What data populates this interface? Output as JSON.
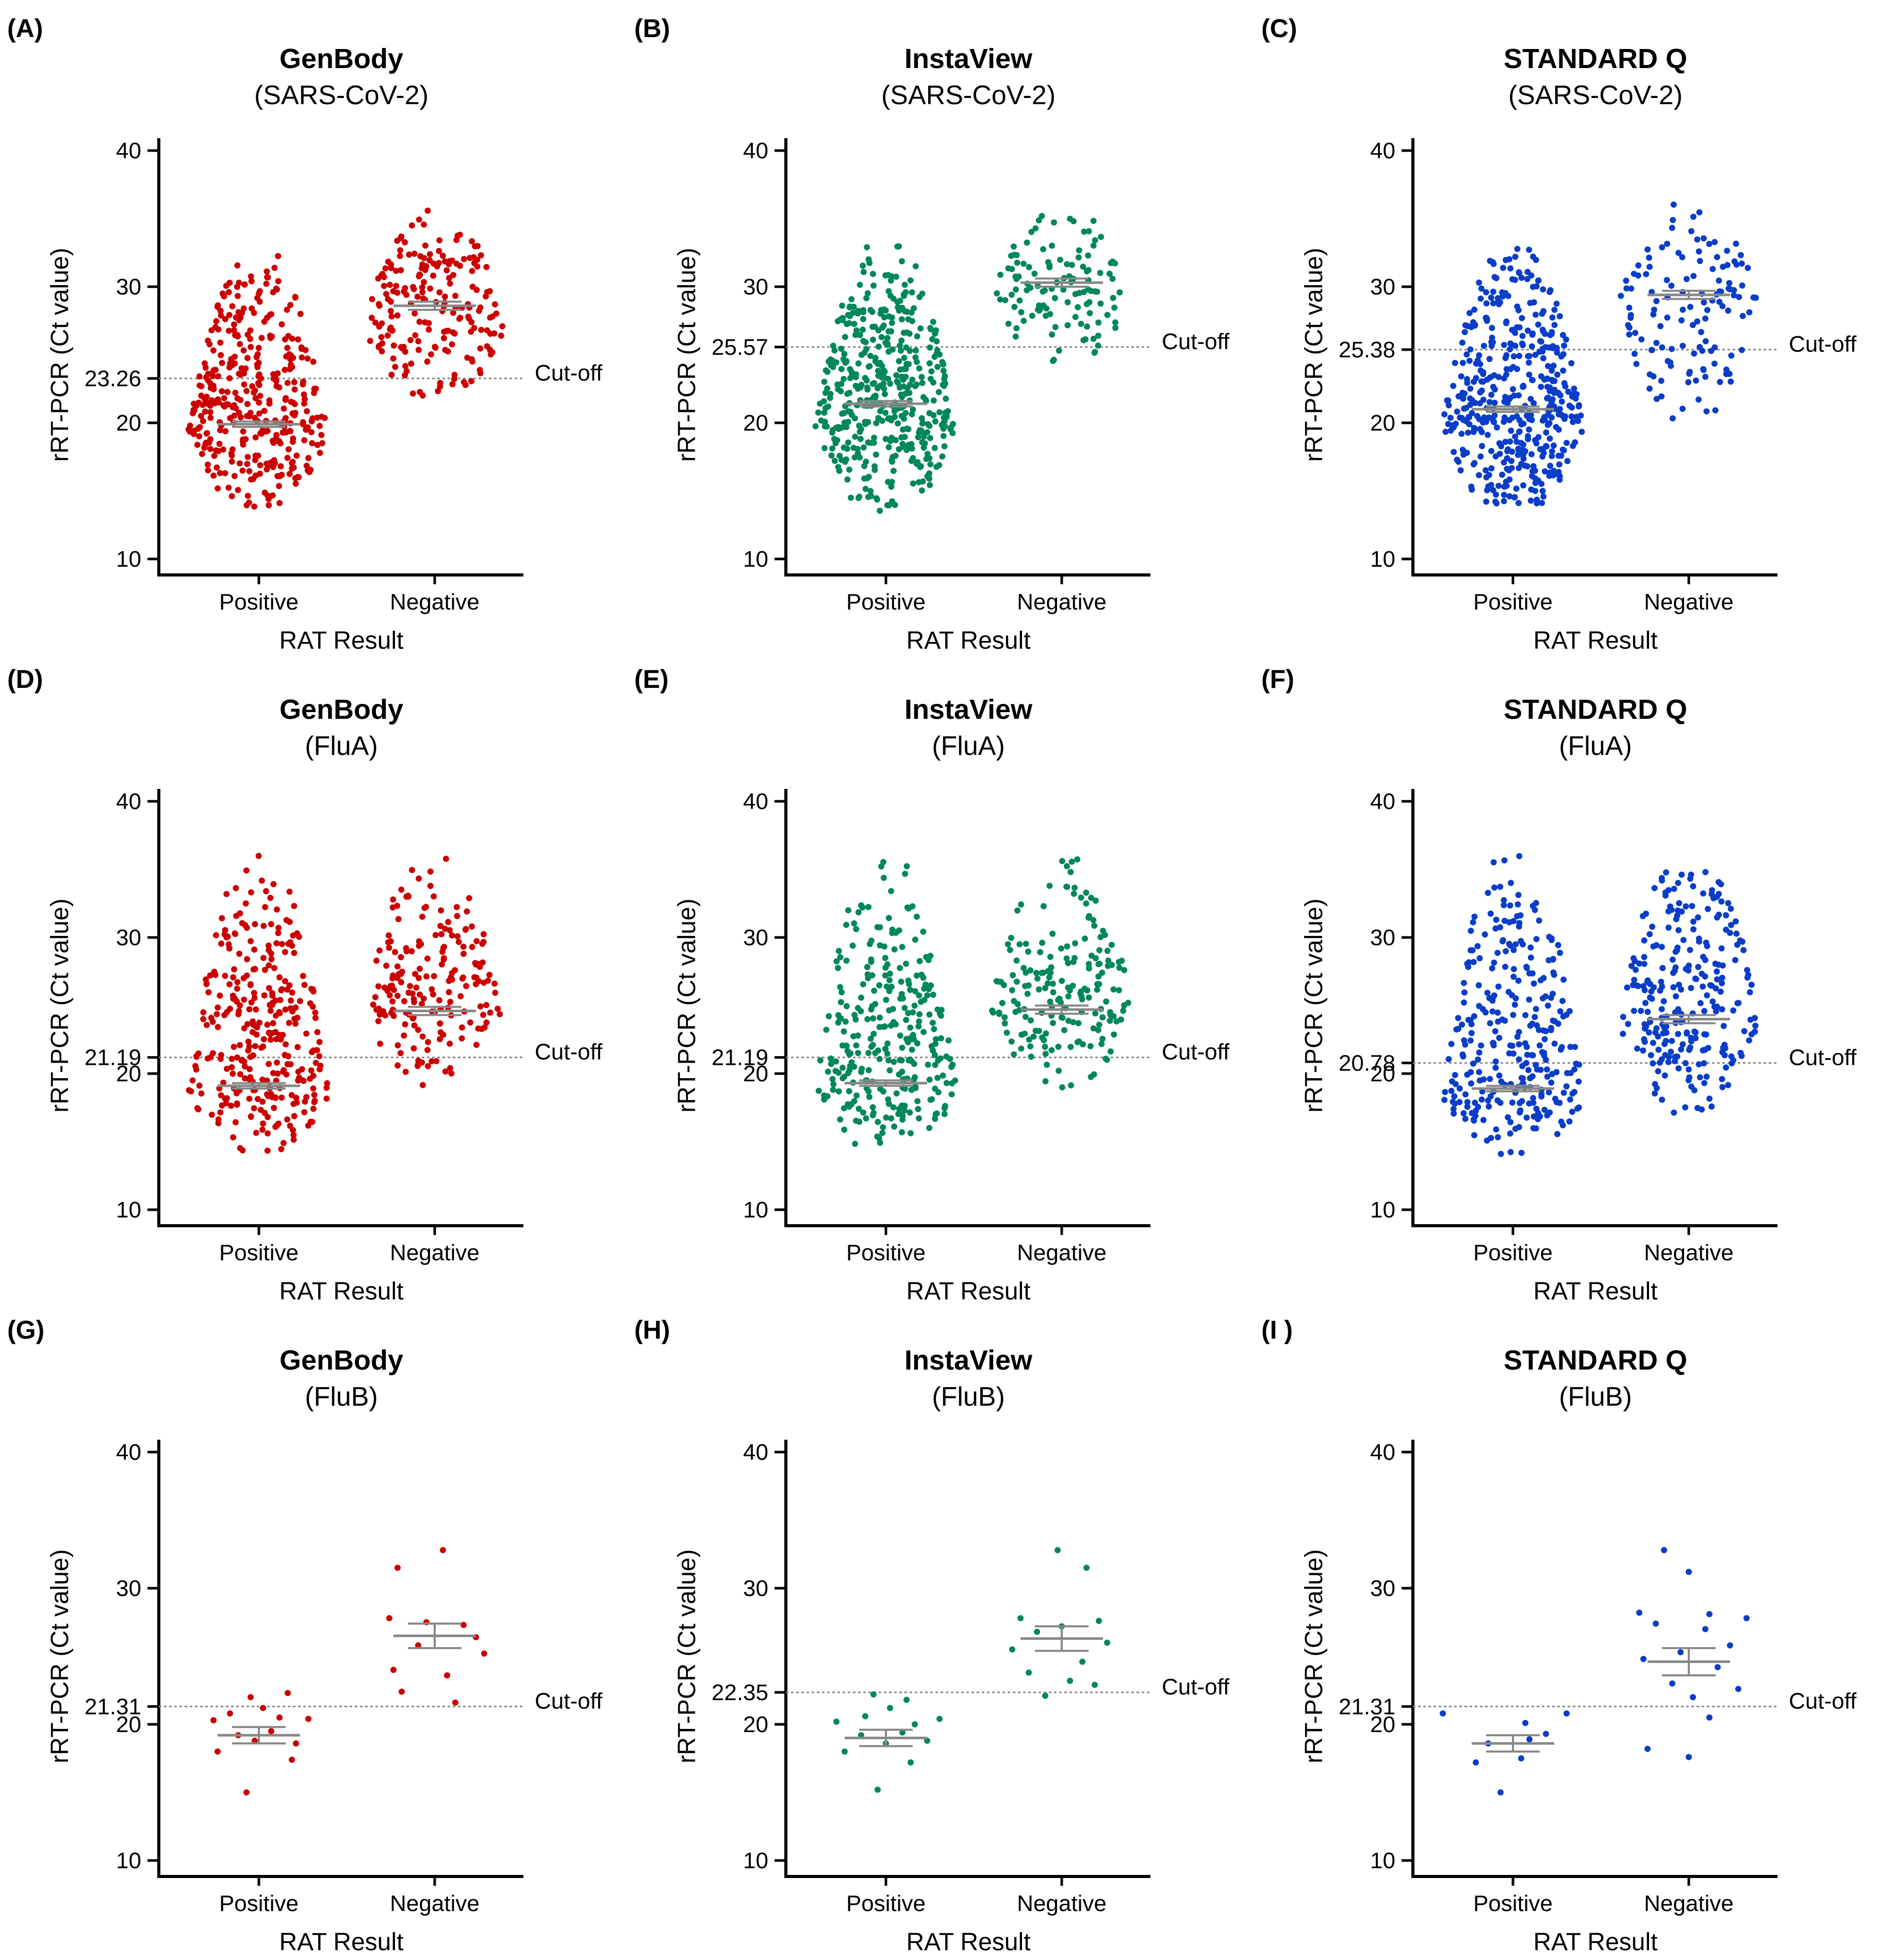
{
  "figure": {
    "colors": {
      "GenBody": "#cc0000",
      "InstaView": "#00875a",
      "STANDARD Q": "#0a3dc8"
    },
    "axis_color": "#000000",
    "cutoff_color": "#888888",
    "error_bar_color": "#888888"
  },
  "chart_data": [
    {
      "type": "scatter",
      "panel": "(A)",
      "title": "GenBody",
      "subtitle": "(SARS-CoV-2)",
      "xlabel": "RAT Result",
      "ylabel": "rRT-PCR (Ct value)",
      "ylim": [
        10,
        40
      ],
      "yticks": [
        10,
        20,
        30,
        40
      ],
      "categories": [
        "Positive",
        "Negative"
      ],
      "cutoff": 23.26,
      "cutoff_label": "23.26",
      "cutoff_text": "Cut-off",
      "color": "#cc0000",
      "groups": [
        {
          "name": "Positive",
          "n": 380,
          "min": 13.1,
          "max": 32.6,
          "mode": 19.5,
          "mean": 19.9,
          "sem": 0.2
        },
        {
          "name": "Negative",
          "n": 200,
          "min": 21.5,
          "max": 36.5,
          "mode": 27.0,
          "mean": 28.6,
          "sem": 0.3
        }
      ]
    },
    {
      "type": "scatter",
      "panel": "(B)",
      "title": "InstaView",
      "subtitle": "(SARS-CoV-2)",
      "xlabel": "RAT Result",
      "ylabel": "rRT-PCR (Ct value)",
      "ylim": [
        10,
        40
      ],
      "yticks": [
        10,
        20,
        30,
        40
      ],
      "categories": [
        "Positive",
        "Negative"
      ],
      "cutoff": 25.57,
      "cutoff_label": "25.57",
      "cutoff_text": "Cut-off",
      "color": "#00875a",
      "groups": [
        {
          "name": "Positive",
          "n": 460,
          "min": 13.0,
          "max": 33.6,
          "mode": 19.8,
          "mean": 21.4,
          "sem": 0.2
        },
        {
          "name": "Negative",
          "n": 120,
          "min": 24.0,
          "max": 36.5,
          "mode": 29.0,
          "mean": 30.3,
          "sem": 0.3
        }
      ]
    },
    {
      "type": "scatter",
      "panel": "(C)",
      "title": "STANDARD Q",
      "subtitle": "(SARS-CoV-2)",
      "xlabel": "RAT Result",
      "ylabel": "rRT-PCR (Ct value)",
      "ylim": [
        10,
        40
      ],
      "yticks": [
        10,
        20,
        30,
        40
      ],
      "categories": [
        "Positive",
        "Negative"
      ],
      "cutoff": 25.38,
      "cutoff_label": "25.38",
      "cutoff_text": "Cut-off",
      "color": "#0a3dc8",
      "groups": [
        {
          "name": "Positive",
          "n": 460,
          "min": 13.0,
          "max": 33.6,
          "mode": 19.8,
          "mean": 21.0,
          "sem": 0.2
        },
        {
          "name": "Negative",
          "n": 130,
          "min": 18.7,
          "max": 36.5,
          "mode": 29.0,
          "mean": 29.4,
          "sem": 0.3
        }
      ]
    },
    {
      "type": "scatter",
      "panel": "(D)",
      "title": "GenBody",
      "subtitle": "(FluA)",
      "xlabel": "RAT Result",
      "ylabel": "rRT-PCR (Ct value)",
      "ylim": [
        10,
        40
      ],
      "yticks": [
        10,
        20,
        30,
        40
      ],
      "categories": [
        "Positive",
        "Negative"
      ],
      "cutoff": 21.19,
      "cutoff_label": "21.19",
      "cutoff_text": "Cut-off",
      "color": "#cc0000",
      "groups": [
        {
          "name": "Positive",
          "n": 320,
          "min": 14.0,
          "max": 36.5,
          "mode": 18.5,
          "mean": 19.1,
          "sem": 0.2
        },
        {
          "name": "Negative",
          "n": 190,
          "min": 18.7,
          "max": 36.5,
          "mode": 24.8,
          "mean": 24.6,
          "sem": 0.3
        }
      ]
    },
    {
      "type": "scatter",
      "panel": "(E)",
      "title": "InstaView",
      "subtitle": "(FluA)",
      "xlabel": "RAT Result",
      "ylabel": "rRT-PCR (Ct value)",
      "ylim": [
        10,
        40
      ],
      "yticks": [
        10,
        20,
        30,
        40
      ],
      "categories": [
        "Positive",
        "Negative"
      ],
      "cutoff": 21.19,
      "cutoff_label": "21.19",
      "cutoff_text": "Cut-off",
      "color": "#00875a",
      "groups": [
        {
          "name": "Positive",
          "n": 300,
          "min": 14.0,
          "max": 36.5,
          "mode": 18.5,
          "mean": 19.3,
          "sem": 0.2
        },
        {
          "name": "Negative",
          "n": 190,
          "min": 18.7,
          "max": 36.5,
          "mode": 24.8,
          "mean": 24.7,
          "sem": 0.3
        }
      ]
    },
    {
      "type": "scatter",
      "panel": "(F)",
      "title": "STANDARD Q",
      "subtitle": "(FluA)",
      "xlabel": "RAT Result",
      "ylabel": "rRT-PCR (Ct value)",
      "ylim": [
        10,
        40
      ],
      "yticks": [
        10,
        20,
        30,
        40
      ],
      "categories": [
        "Positive",
        "Negative"
      ],
      "cutoff": 20.78,
      "cutoff_label": "20.78",
      "cutoff_text": "Cut-off",
      "color": "#0a3dc8",
      "groups": [
        {
          "name": "Positive",
          "n": 300,
          "min": 14.0,
          "max": 36.5,
          "mode": 18.0,
          "mean": 18.9,
          "sem": 0.2
        },
        {
          "name": "Negative",
          "n": 260,
          "min": 16.5,
          "max": 36.5,
          "mode": 24.0,
          "mean": 24.0,
          "sem": 0.3
        }
      ]
    },
    {
      "type": "scatter",
      "panel": "(G)",
      "title": "GenBody",
      "subtitle": "(FluB)",
      "xlabel": "RAT Result",
      "ylabel": "rRT-PCR (Ct value)",
      "ylim": [
        10,
        40
      ],
      "yticks": [
        10,
        20,
        30,
        40
      ],
      "categories": [
        "Positive",
        "Negative"
      ],
      "cutoff": 21.31,
      "cutoff_label": "21.31",
      "cutoff_text": "Cut-off",
      "color": "#cc0000",
      "groups": [
        {
          "name": "Positive",
          "n": 14,
          "mean": 19.2,
          "sem": 0.6,
          "points": [
            [
              -0.06,
              15.0
            ],
            [
              0.16,
              17.4
            ],
            [
              -0.2,
              18.0
            ],
            [
              -0.02,
              18.8
            ],
            [
              0.18,
              18.6
            ],
            [
              -0.1,
              19.2
            ],
            [
              0.06,
              19.5
            ],
            [
              -0.22,
              20.3
            ],
            [
              0.1,
              20.5
            ],
            [
              0.24,
              20.4
            ],
            [
              -0.14,
              20.8
            ],
            [
              0.02,
              21.2
            ],
            [
              -0.04,
              22.0
            ],
            [
              0.14,
              22.3
            ]
          ]
        },
        {
          "name": "Negative",
          "n": 12,
          "mean": 26.5,
          "sem": 0.9,
          "points": [
            [
              0.04,
              32.8
            ],
            [
              -0.18,
              31.5
            ],
            [
              -0.22,
              27.8
            ],
            [
              -0.04,
              27.5
            ],
            [
              0.14,
              27.3
            ],
            [
              0.2,
              26.4
            ],
            [
              -0.08,
              25.8
            ],
            [
              0.24,
              25.2
            ],
            [
              -0.2,
              24.0
            ],
            [
              0.06,
              23.6
            ],
            [
              -0.16,
              22.4
            ],
            [
              0.1,
              21.6
            ]
          ]
        }
      ]
    },
    {
      "type": "scatter",
      "panel": "(H)",
      "title": "InstaView",
      "subtitle": "(FluB)",
      "xlabel": "RAT Result",
      "ylabel": "rRT-PCR (Ct value)",
      "ylim": [
        10,
        40
      ],
      "yticks": [
        10,
        20,
        30,
        40
      ],
      "categories": [
        "Positive",
        "Negative"
      ],
      "cutoff": 22.35,
      "cutoff_label": "22.35",
      "cutoff_text": "Cut-off",
      "color": "#00875a",
      "groups": [
        {
          "name": "Positive",
          "n": 14,
          "mean": 19.0,
          "sem": 0.6,
          "points": [
            [
              -0.04,
              15.2
            ],
            [
              0.12,
              17.2
            ],
            [
              -0.2,
              18.0
            ],
            [
              0.0,
              18.6
            ],
            [
              0.2,
              18.8
            ],
            [
              -0.12,
              19.2
            ],
            [
              0.08,
              19.4
            ],
            [
              -0.24,
              20.2
            ],
            [
              0.14,
              20.0
            ],
            [
              0.26,
              20.4
            ],
            [
              -0.1,
              20.6
            ],
            [
              0.02,
              21.2
            ],
            [
              -0.06,
              22.2
            ],
            [
              0.1,
              21.8
            ]
          ]
        },
        {
          "name": "Negative",
          "n": 13,
          "mean": 26.3,
          "sem": 0.9,
          "points": [
            [
              -0.02,
              32.8
            ],
            [
              0.12,
              31.5
            ],
            [
              -0.2,
              27.8
            ],
            [
              0.18,
              27.6
            ],
            [
              0.0,
              27.2
            ],
            [
              -0.12,
              26.8
            ],
            [
              0.22,
              26.0
            ],
            [
              -0.24,
              25.5
            ],
            [
              0.1,
              24.6
            ],
            [
              -0.16,
              23.8
            ],
            [
              0.04,
              23.2
            ],
            [
              0.16,
              22.9
            ],
            [
              -0.08,
              22.1
            ]
          ]
        }
      ]
    },
    {
      "type": "scatter",
      "panel": "(I )",
      "title": "STANDARD Q",
      "subtitle": "(FluB)",
      "xlabel": "RAT Result",
      "ylabel": "rRT-PCR (Ct value)",
      "ylim": [
        10,
        40
      ],
      "yticks": [
        10,
        20,
        30,
        40
      ],
      "categories": [
        "Positive",
        "Negative"
      ],
      "cutoff": 21.31,
      "cutoff_label": "21.31",
      "cutoff_text": "Cut-off",
      "color": "#0a3dc8",
      "groups": [
        {
          "name": "Positive",
          "n": 9,
          "mean": 18.6,
          "sem": 0.6,
          "points": [
            [
              -0.34,
              20.8
            ],
            [
              -0.06,
              15.0
            ],
            [
              -0.18,
              17.2
            ],
            [
              0.04,
              17.5
            ],
            [
              -0.12,
              18.6
            ],
            [
              0.08,
              18.9
            ],
            [
              0.16,
              19.3
            ],
            [
              0.06,
              20.1
            ],
            [
              0.26,
              20.8
            ]
          ]
        },
        {
          "name": "Negative",
          "n": 17,
          "mean": 24.6,
          "sem": 1.0,
          "points": [
            [
              -0.12,
              32.8
            ],
            [
              0.0,
              31.2
            ],
            [
              -0.24,
              28.2
            ],
            [
              0.1,
              28.1
            ],
            [
              0.28,
              27.8
            ],
            [
              -0.16,
              27.4
            ],
            [
              0.08,
              27.0
            ],
            [
              0.2,
              25.8
            ],
            [
              -0.04,
              25.3
            ],
            [
              -0.22,
              24.8
            ],
            [
              0.14,
              24.2
            ],
            [
              -0.08,
              23.0
            ],
            [
              0.24,
              22.6
            ],
            [
              0.02,
              22.0
            ],
            [
              0.1,
              20.5
            ],
            [
              -0.2,
              18.2
            ],
            [
              0.0,
              17.6
            ]
          ]
        }
      ]
    }
  ]
}
